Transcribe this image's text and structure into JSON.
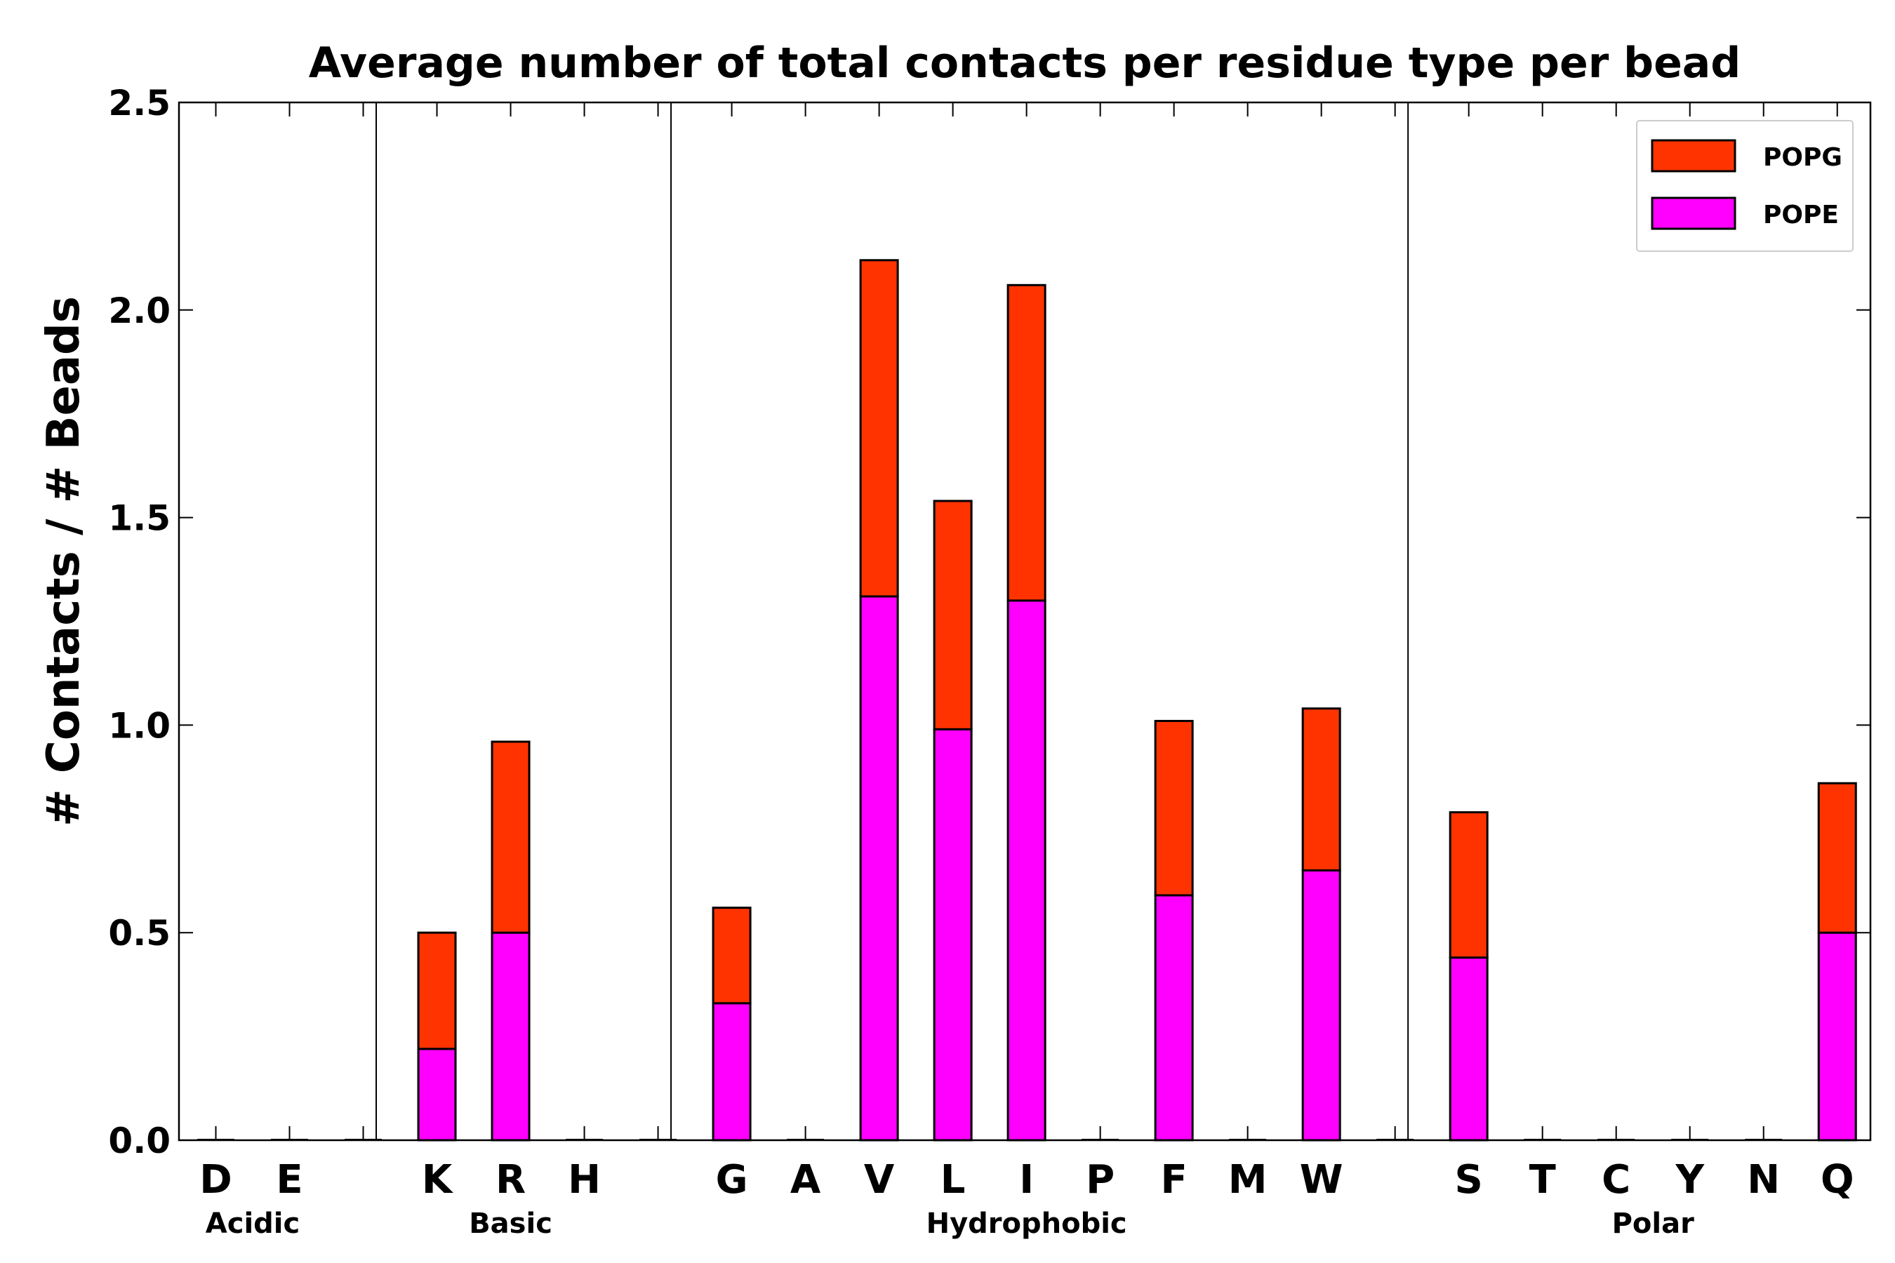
{
  "chart_data": {
    "type": "bar",
    "stacked": true,
    "title": "Average number of total contacts per residue type per bead",
    "xlabel": "",
    "ylabel": "# Contacts / # Beads",
    "ylim": [
      0,
      2.5
    ],
    "yticks": [
      "0.0",
      "0.5",
      "1.0",
      "1.5",
      "2.0",
      "2.5"
    ],
    "categories": [
      "D",
      "E",
      "",
      "K",
      "R",
      "H",
      "",
      "G",
      "A",
      "V",
      "L",
      "I",
      "P",
      "F",
      "M",
      "W",
      "",
      "S",
      "T",
      "C",
      "Y",
      "N",
      "Q"
    ],
    "groups": [
      {
        "name": "Acidic",
        "start": 0,
        "end": 1
      },
      {
        "name": "Basic",
        "start": 3,
        "end": 5
      },
      {
        "name": "Hydrophobic",
        "start": 7,
        "end": 15
      },
      {
        "name": "Polar",
        "start": 17,
        "end": 22
      }
    ],
    "separators_after": [
      2,
      6,
      16
    ],
    "series": [
      {
        "name": "POPE",
        "color": "#ff00ff",
        "values": [
          0,
          0,
          0,
          0.22,
          0.5,
          0,
          0,
          0.33,
          0,
          1.31,
          0.99,
          1.3,
          0,
          0.59,
          0,
          0.65,
          0,
          0.44,
          0,
          0,
          0,
          0,
          0.5
        ]
      },
      {
        "name": "POPG",
        "color": "#ff3300",
        "values": [
          0,
          0,
          0,
          0.28,
          0.46,
          0,
          0,
          0.23,
          0,
          0.81,
          0.55,
          0.76,
          0,
          0.42,
          0,
          0.39,
          0,
          0.35,
          0,
          0,
          0,
          0,
          0.36
        ]
      }
    ],
    "legend": {
      "position": "top-right",
      "order": [
        "POPG",
        "POPE"
      ]
    }
  }
}
